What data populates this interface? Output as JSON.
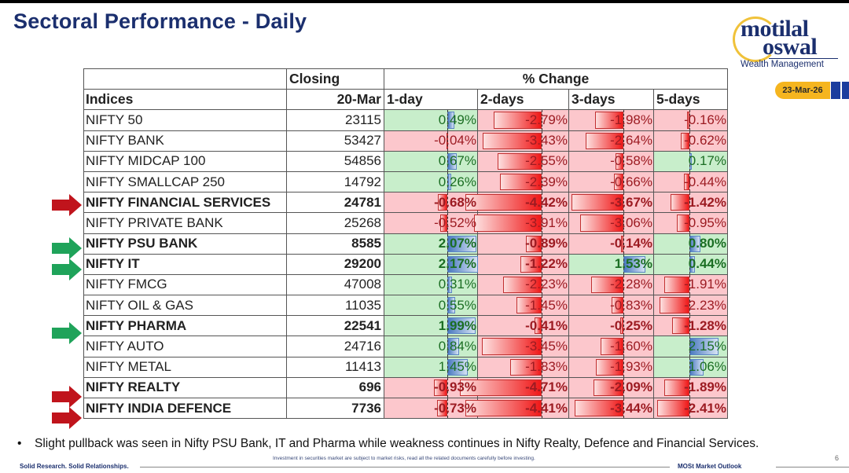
{
  "title": "Sectoral Performance - Daily",
  "logo": {
    "line1": "motilal",
    "line2": "oswal",
    "line3": "Wealth Management"
  },
  "date_badge": "23-Mar-26",
  "table": {
    "header_row1": {
      "closing": "Closing",
      "pct_change": "% Change"
    },
    "header_row2": {
      "indices": "Indices",
      "date": "20-Mar",
      "d1": "1-day",
      "d2": "2-days",
      "d3": "3-days",
      "d5": "5-days"
    },
    "rows": [
      {
        "name": "NIFTY 50",
        "close": "23115",
        "bold": false,
        "arrow": "",
        "changes": [
          0.49,
          -2.79,
          -1.98,
          -0.16
        ],
        "labels": [
          "0.49%",
          "-2.79%",
          "-1.98%",
          "-0.16%"
        ]
      },
      {
        "name": "NIFTY BANK",
        "close": "53427",
        "bold": false,
        "arrow": "",
        "changes": [
          -0.04,
          -3.43,
          -2.64,
          -0.62
        ],
        "labels": [
          "-0.04%",
          "-3.43%",
          "-2.64%",
          "-0.62%"
        ]
      },
      {
        "name": "NIFTY MIDCAP 100",
        "close": "54856",
        "bold": false,
        "arrow": "",
        "changes": [
          0.67,
          -2.55,
          -0.58,
          0.17
        ],
        "labels": [
          "0.67%",
          "-2.55%",
          "-0.58%",
          "0.17%"
        ]
      },
      {
        "name": "NIFTY SMALLCAP 250",
        "close": "14792",
        "bold": false,
        "arrow": "",
        "changes": [
          0.26,
          -2.39,
          -0.66,
          -0.44
        ],
        "labels": [
          "0.26%",
          "-2.39%",
          "-0.66%",
          "-0.44%"
        ]
      },
      {
        "name": "NIFTY FINANCIAL SERVICES",
        "close": "24781",
        "bold": true,
        "arrow": "red",
        "changes": [
          -0.68,
          -4.42,
          -3.67,
          -1.42
        ],
        "labels": [
          "-0.68%",
          "-4.42%",
          "-3.67%",
          "-1.42%"
        ]
      },
      {
        "name": "NIFTY PRIVATE BANK",
        "close": "25268",
        "bold": false,
        "arrow": "",
        "changes": [
          -0.52,
          -3.91,
          -3.06,
          -0.95
        ],
        "labels": [
          "-0.52%",
          "-3.91%",
          "-3.06%",
          "-0.95%"
        ]
      },
      {
        "name": "NIFTY PSU BANK",
        "close": "8585",
        "bold": true,
        "arrow": "green",
        "changes": [
          2.07,
          -0.89,
          -0.14,
          0.8
        ],
        "labels": [
          "2.07%",
          "-0.89%",
          "-0.14%",
          "0.80%"
        ]
      },
      {
        "name": "NIFTY IT",
        "close": "29200",
        "bold": true,
        "arrow": "green",
        "changes": [
          2.17,
          -1.22,
          1.53,
          0.44
        ],
        "labels": [
          "2.17%",
          "-1.22%",
          "1.53%",
          "0.44%"
        ]
      },
      {
        "name": "NIFTY FMCG",
        "close": "47008",
        "bold": false,
        "arrow": "",
        "changes": [
          0.31,
          -2.23,
          -2.28,
          -1.91
        ],
        "labels": [
          "0.31%",
          "-2.23%",
          "-2.28%",
          "-1.91%"
        ]
      },
      {
        "name": "NIFTY OIL & GAS",
        "close": "11035",
        "bold": false,
        "arrow": "",
        "changes": [
          0.55,
          -1.45,
          -0.83,
          -2.23
        ],
        "labels": [
          "0.55%",
          "-1.45%",
          "-0.83%",
          "-2.23%"
        ]
      },
      {
        "name": "NIFTY PHARMA",
        "close": "22541",
        "bold": true,
        "arrow": "green",
        "changes": [
          1.99,
          -0.41,
          -0.25,
          -1.28
        ],
        "labels": [
          "1.99%",
          "-0.41%",
          "-0.25%",
          "-1.28%"
        ]
      },
      {
        "name": "NIFTY AUTO",
        "close": "24716",
        "bold": false,
        "arrow": "",
        "changes": [
          0.84,
          -3.45,
          -1.6,
          2.15
        ],
        "labels": [
          "0.84%",
          "-3.45%",
          "-1.60%",
          "2.15%"
        ]
      },
      {
        "name": "NIFTY METAL",
        "close": "11413",
        "bold": false,
        "arrow": "",
        "changes": [
          1.45,
          -1.83,
          -1.93,
          1.06
        ],
        "labels": [
          "1.45%",
          "-1.83%",
          "-1.93%",
          "1.06%"
        ]
      },
      {
        "name": "NIFTY REALTY",
        "close": "696",
        "bold": true,
        "arrow": "red",
        "changes": [
          -0.93,
          -4.71,
          -2.09,
          -1.89
        ],
        "labels": [
          "-0.93%",
          "-4.71%",
          "-2.09%",
          "-1.89%"
        ]
      },
      {
        "name": "NIFTY INDIA DEFENCE",
        "close": "7736",
        "bold": true,
        "arrow": "red",
        "changes": [
          -0.73,
          -4.41,
          -3.44,
          -2.41
        ],
        "labels": [
          "-0.73%",
          "-4.41%",
          "-3.44%",
          "-2.41%"
        ]
      }
    ]
  },
  "colors": {
    "title": "#1b2f6e",
    "neg_fill": "#fcc7cc",
    "pos_fill": "#c8eecb",
    "arrow_red": "#c0141c",
    "arrow_green": "#1fa35a",
    "badge": "#f5b51f"
  },
  "bullet": "Slight pullback was seen in Nifty PSU Bank, IT and Pharma while weakness continues in Nifty Realty, Defence and Financial Services.",
  "disclaimer": "Investment in securities market are subject to market risks, read all the related documents carefully before investing.",
  "page_number": "6",
  "footer_left": "Solid Research. Solid Relationships.",
  "footer_right": "MOSt Market Outlook"
}
